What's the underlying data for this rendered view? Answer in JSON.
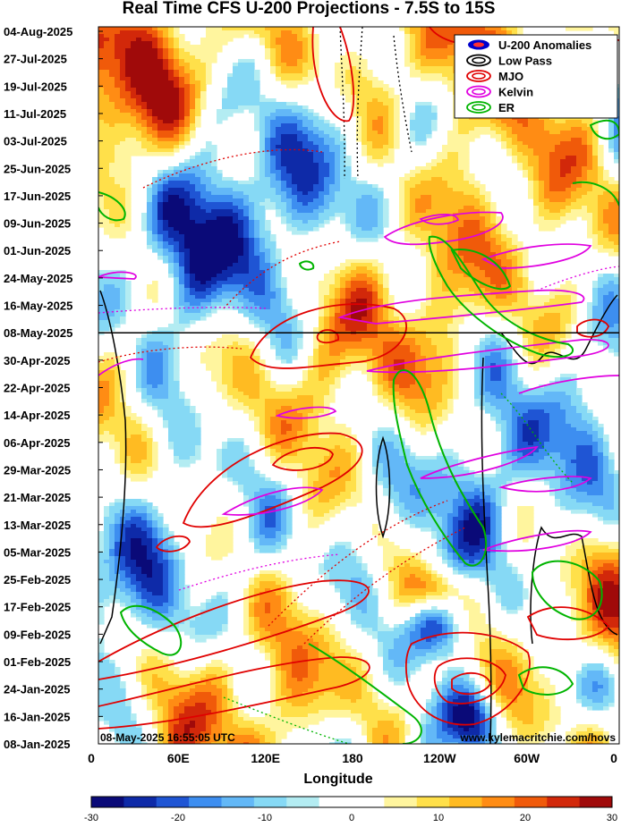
{
  "chart_data": {
    "type": "heatmap",
    "title": "Real Time CFS U-200 Projections - 7.5S to 15S",
    "xlabel": "Longitude",
    "ylabel": "",
    "x_ticks": [
      "0",
      "60E",
      "120E",
      "180",
      "120W",
      "60W",
      "0"
    ],
    "x_tick_values": [
      0,
      60,
      120,
      180,
      240,
      300,
      360
    ],
    "y_ticks": [
      "04-Aug-2025",
      "27-Jul-2025",
      "19-Jul-2025",
      "11-Jul-2025",
      "03-Jul-2025",
      "25-Jun-2025",
      "17-Jun-2025",
      "09-Jun-2025",
      "01-Jun-2025",
      "24-May-2025",
      "16-May-2025",
      "08-May-2025",
      "30-Apr-2025",
      "22-Apr-2025",
      "14-Apr-2025",
      "06-Apr-2025",
      "29-Mar-2025",
      "21-Mar-2025",
      "13-Mar-2025",
      "05-Mar-2025",
      "25-Feb-2025",
      "17-Feb-2025",
      "09-Feb-2025",
      "01-Feb-2025",
      "24-Jan-2025",
      "16-Jan-2025",
      "08-Jan-2025"
    ],
    "xlim": [
      0,
      360
    ],
    "current_date": "08-May-2025",
    "colorbar": {
      "ticks": [
        "-30",
        "-20",
        "-10",
        "0",
        "10",
        "20",
        "30"
      ],
      "range": [
        -30,
        30
      ],
      "colors": [
        "#0a0a78",
        "#0e2aa8",
        "#1f55d4",
        "#3d8ef0",
        "#63b8f7",
        "#86d9f5",
        "#b3ecf2",
        "#ffffff",
        "#ffffff",
        "#fff59e",
        "#ffe04a",
        "#ffbb22",
        "#ff8c14",
        "#f05a0a",
        "#d2280a",
        "#a00a0a"
      ]
    },
    "legend": {
      "position": "top-right",
      "items": [
        {
          "label": "U-200 Anomalies",
          "color": "#0000cc",
          "icon": "anomaly-oval-icon"
        },
        {
          "label": "Low Pass",
          "color": "#000000",
          "icon": "black-oval-icon"
        },
        {
          "label": "MJO",
          "color": "#e00000",
          "icon": "red-oval-icon"
        },
        {
          "label": "Kelvin",
          "color": "#e000e0",
          "icon": "magenta-oval-icon"
        },
        {
          "label": "ER",
          "color": "#00b400",
          "icon": "green-oval-icon"
        }
      ]
    },
    "timestamp": "08-May-2025 16:55:05 UTC",
    "source": "www.kylemacritchie.com/hovs"
  }
}
